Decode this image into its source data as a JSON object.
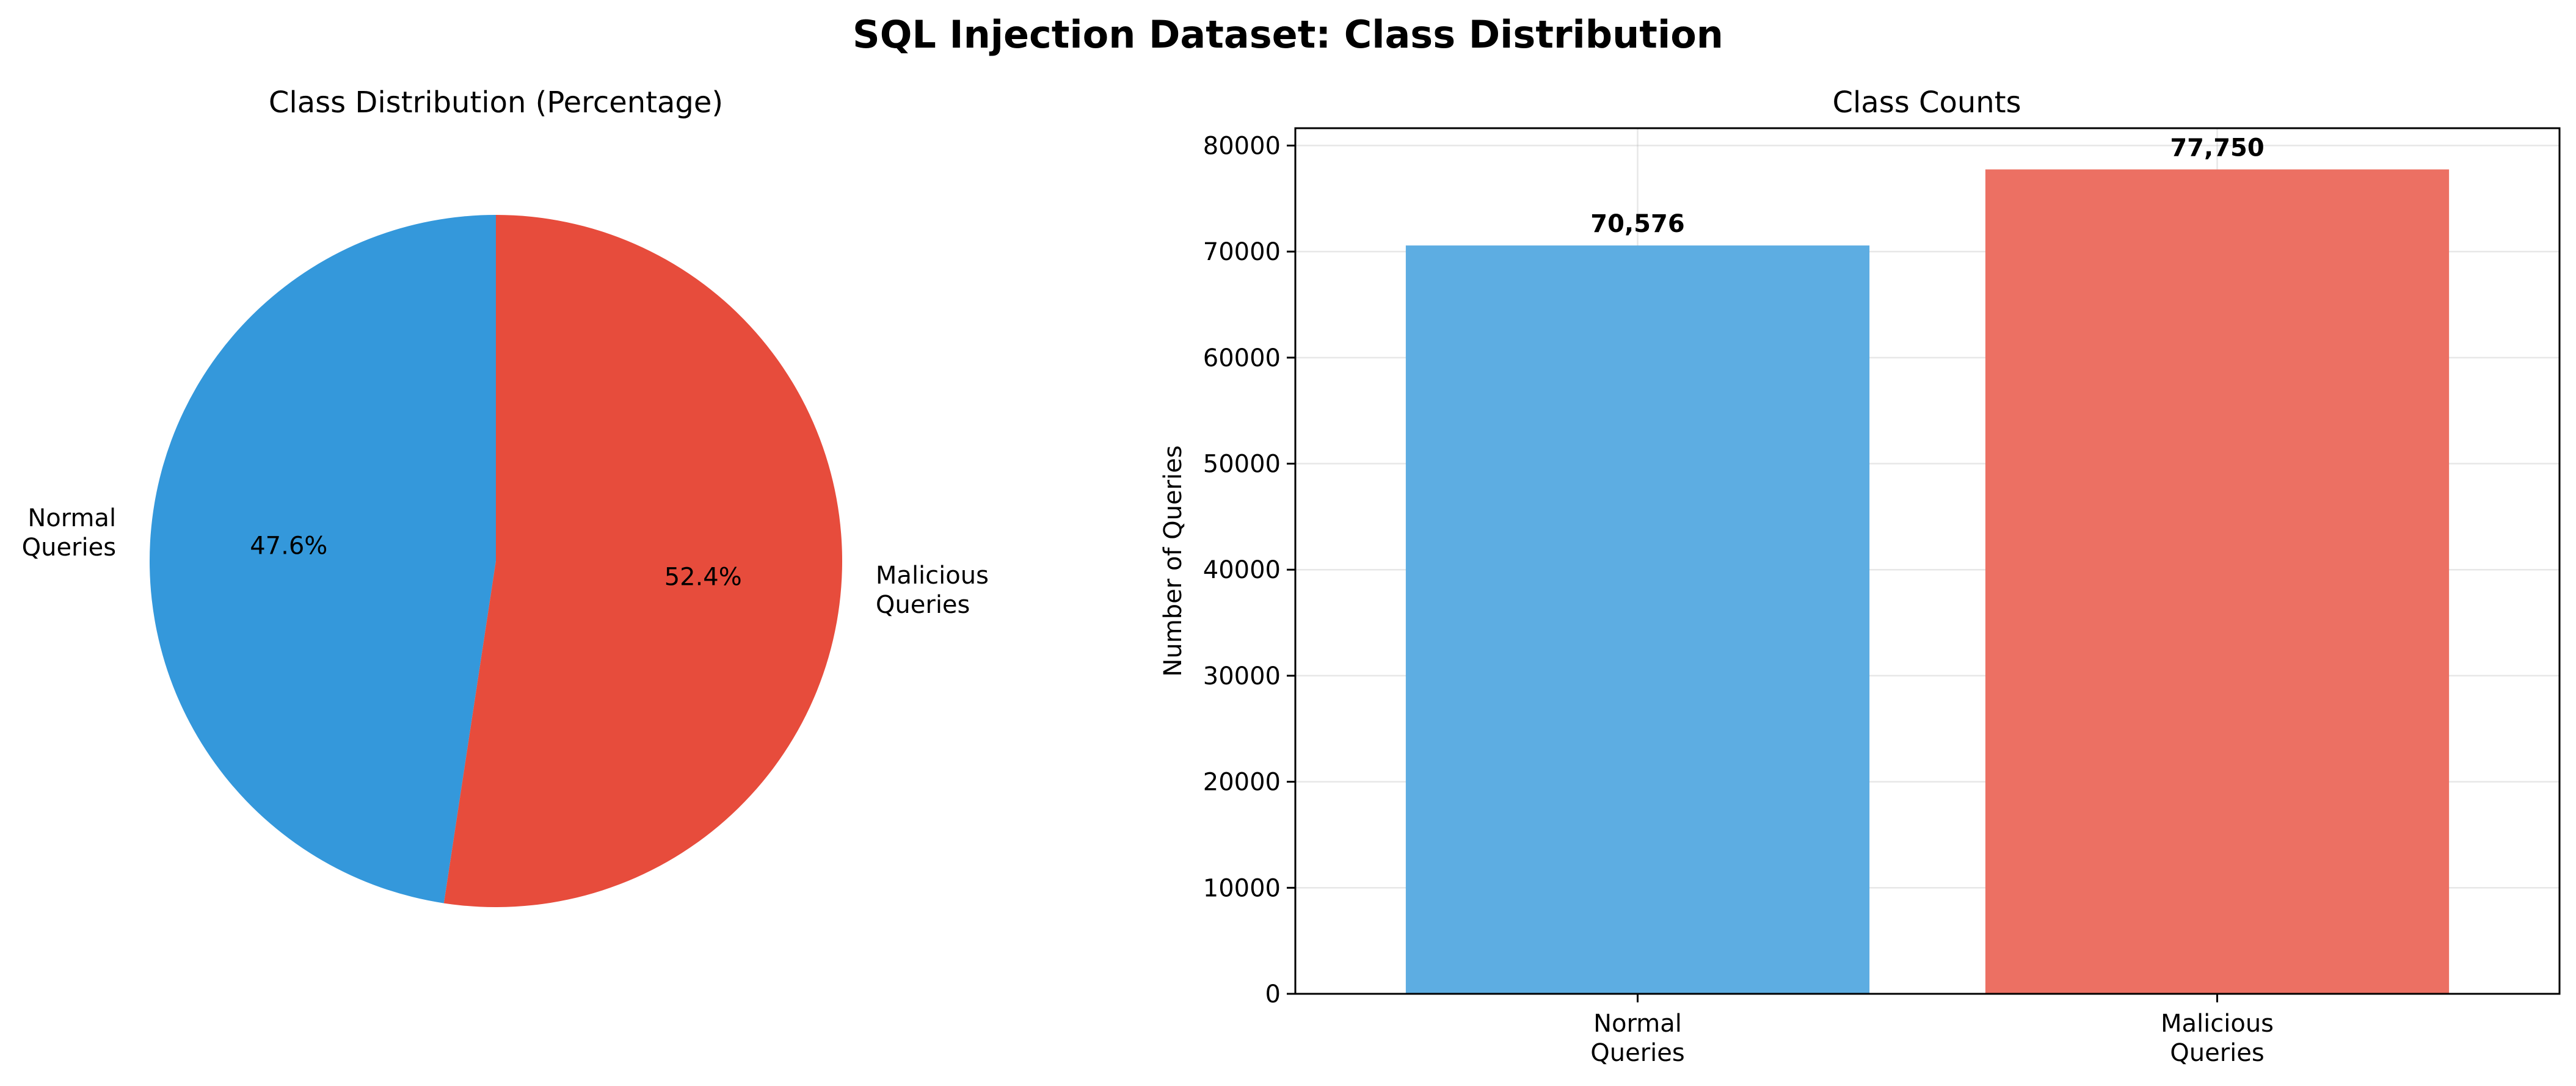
{
  "figure": {
    "title": "SQL Injection Dataset: Class Distribution"
  },
  "chart_data": [
    {
      "type": "pie",
      "title": "Class Distribution (Percentage)",
      "categories": [
        [
          "Normal",
          "Queries"
        ],
        [
          "Malicious",
          "Queries"
        ]
      ],
      "values": [
        47.6,
        52.4
      ],
      "percent_labels": [
        "47.6%",
        "52.4%"
      ],
      "colors": [
        "#3498db",
        "#e74c3c"
      ],
      "start_angle_deg": 90,
      "direction": "counterclockwise"
    },
    {
      "type": "bar",
      "title": "Class Counts",
      "xlabel": "",
      "ylabel": "Number of Queries",
      "categories": [
        [
          "Normal",
          "Queries"
        ],
        [
          "Malicious",
          "Queries"
        ]
      ],
      "values": [
        70576,
        77750
      ],
      "value_labels": [
        "70,576",
        "77,750"
      ],
      "colors": [
        "#5dade2",
        "#ec7063"
      ],
      "ylim": [
        0,
        81637
      ],
      "yticks": [
        0,
        10000,
        20000,
        30000,
        40000,
        50000,
        60000,
        70000,
        80000
      ],
      "ytick_labels": [
        "0",
        "10000",
        "20000",
        "30000",
        "40000",
        "50000",
        "60000",
        "70000",
        "80000"
      ],
      "grid": true
    }
  ]
}
